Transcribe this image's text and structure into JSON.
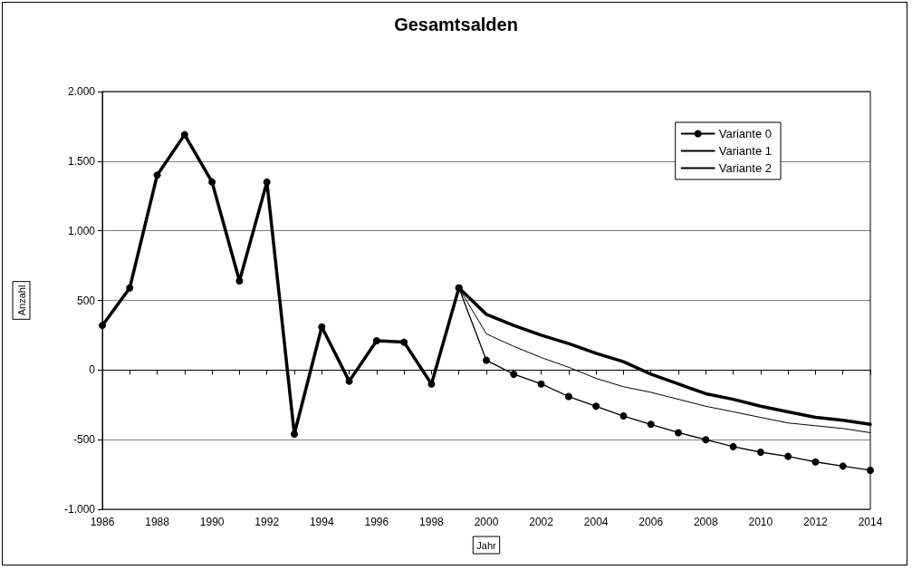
{
  "chart_data": {
    "type": "line",
    "title": "Gesamtsalden",
    "xlabel": "Jahr",
    "ylabel": "Anzahl",
    "xlim": [
      1986,
      2014
    ],
    "xticks": [
      1986,
      {
        "value": 1987,
        "label": null
      },
      1988,
      {
        "value": 1989,
        "label": null
      },
      1990,
      {
        "value": 1991,
        "label": null
      },
      1992,
      {
        "value": 1993,
        "label": null
      },
      1994,
      {
        "value": 1995,
        "label": null
      },
      1996,
      {
        "value": 1997,
        "label": null
      },
      1998,
      {
        "value": 1999,
        "label": null
      },
      2000,
      {
        "value": 2001,
        "label": null
      },
      2002,
      {
        "value": 2003,
        "label": null
      },
      2004,
      {
        "value": 2005,
        "label": null
      },
      2006,
      {
        "value": 2007,
        "label": null
      },
      2008,
      {
        "value": 2009,
        "label": null
      },
      2010,
      {
        "value": 2011,
        "label": null
      },
      2012,
      {
        "value": 2013,
        "label": null
      },
      2014
    ],
    "ylim": [
      -1000,
      2000
    ],
    "yticks": [
      {
        "value": -1000,
        "label": "-1.000"
      },
      -500,
      0,
      500,
      {
        "value": 1000,
        "label": "1.000"
      },
      {
        "value": 1500,
        "label": "1.500"
      },
      {
        "value": 2000,
        "label": "2.000"
      }
    ],
    "grid": "y",
    "legend": "top right",
    "line_style": "solid",
    "series": [
      {
        "color": "#000000",
        "marker": "circle",
        "x": [
          1986,
          1987,
          1988,
          1989,
          1990,
          1991,
          1992,
          1993,
          1994,
          1995,
          1996,
          1997,
          1998,
          1999
        ],
        "values": [
          320,
          590,
          1400,
          1690,
          1350,
          640,
          1350,
          -460,
          310,
          -80,
          210,
          200,
          -100,
          590
        ]
      },
      {
        "name": "Variante 0",
        "color": "#000000",
        "marker": "circle",
        "x": [
          1999,
          2000,
          2001,
          2002,
          2003,
          2004,
          2005,
          2006,
          2007,
          2008,
          2009,
          2010,
          2011,
          2012,
          2013,
          2014
        ],
        "values": [
          590,
          70,
          -30,
          -100,
          -190,
          -260,
          -330,
          -390,
          -450,
          -500,
          -550,
          -590,
          -620,
          -660,
          -690,
          -720
        ]
      },
      {
        "name": "Variante 1",
        "color": "#000000",
        "marker": "none",
        "x": [
          1999,
          2000,
          2001,
          2002,
          2003,
          2004,
          2005,
          2006,
          2007,
          2008,
          2009,
          2010,
          2011,
          2012,
          2013,
          2014
        ],
        "values": [
          590,
          400,
          320,
          250,
          190,
          120,
          60,
          -30,
          -100,
          -170,
          -210,
          -260,
          -300,
          -340,
          -360,
          -390
        ]
      },
      {
        "name": "Variante 2",
        "color": "#000000",
        "marker": "none",
        "x": [
          1999,
          2000,
          2001,
          2002,
          2003,
          2004,
          2005,
          2006,
          2007,
          2008,
          2009,
          2010,
          2011,
          2012,
          2013,
          2014
        ],
        "values": [
          590,
          260,
          170,
          90,
          20,
          -60,
          -120,
          -160,
          -210,
          -260,
          -300,
          -340,
          -380,
          -400,
          -420,
          -450
        ]
      }
    ]
  }
}
